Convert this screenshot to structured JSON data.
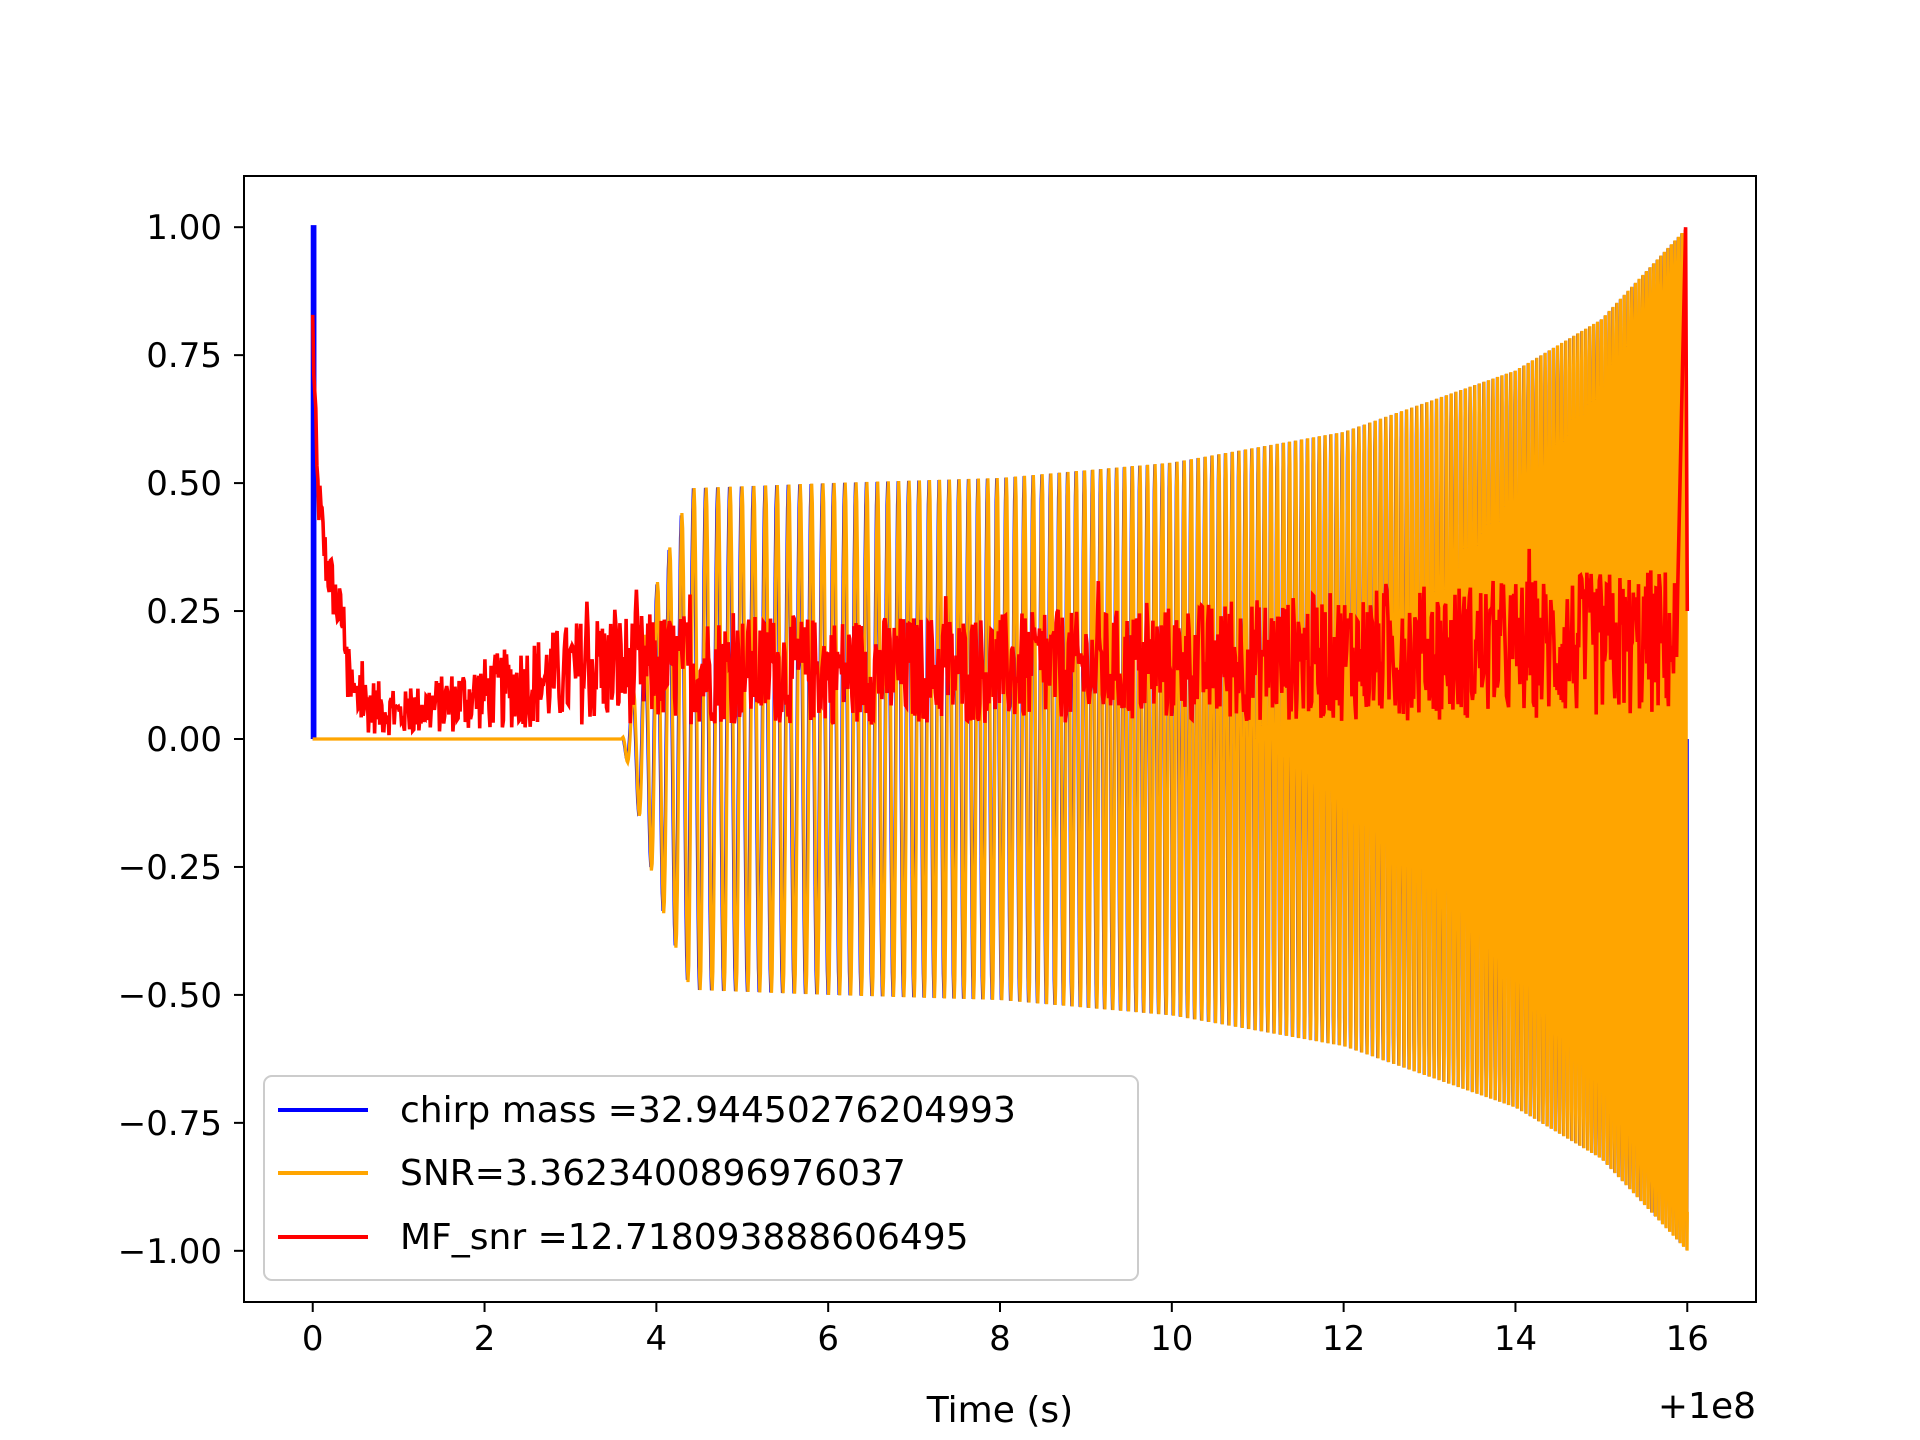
{
  "chart_data": {
    "type": "line",
    "title": "",
    "xlabel": "Time (s)",
    "ylabel": "",
    "x_offset_label": "+1e8",
    "xlim": [
      -0.8,
      16.8
    ],
    "ylim": [
      -1.1,
      1.1
    ],
    "x_ticks": [
      0,
      2,
      4,
      6,
      8,
      10,
      12,
      14,
      16
    ],
    "x_tick_labels": [
      "0",
      "2",
      "4",
      "6",
      "8",
      "10",
      "12",
      "14",
      "16"
    ],
    "y_ticks": [
      1.0,
      0.75,
      0.5,
      0.25,
      0.0,
      -0.25,
      -0.5,
      -0.75,
      -1.0
    ],
    "y_tick_labels": [
      "1.00",
      "0.75",
      "0.50",
      "0.25",
      "0.00",
      "−0.25",
      "−0.50",
      "−0.75",
      "−1.00"
    ],
    "grid": false,
    "legend_position": "lower-left",
    "series": [
      {
        "name": "chirp mass =32.94450276204993",
        "color": "#0000ff",
        "description_points": {
          "x": [
            0.0,
            0.0,
            0.0,
            3.6,
            4.0,
            4.4,
            6.0,
            8.0,
            10.0,
            12.0,
            14.0,
            15.0,
            16.0,
            16.0
          ],
          "envelope": [
            1.0,
            0.0,
            0.0,
            0.0,
            0.3,
            0.49,
            0.5,
            0.51,
            0.54,
            0.6,
            0.72,
            0.82,
            1.0,
            0.0
          ]
        }
      },
      {
        "name": "SNR=3.3623400896976037",
        "color": "#ffa500",
        "description_points": {
          "x": [
            0.0,
            3.6,
            4.0,
            4.4,
            6.0,
            8.0,
            10.0,
            12.0,
            14.0,
            15.0,
            16.0
          ],
          "envelope": [
            0.0,
            0.0,
            0.3,
            0.49,
            0.5,
            0.51,
            0.54,
            0.6,
            0.72,
            0.82,
            1.0
          ]
        }
      },
      {
        "name": "MF_snr =12.718093888606495",
        "color": "#ff0000",
        "description_points": {
          "x": [
            0.0,
            0.05,
            0.15,
            0.3,
            0.5,
            1.0,
            3.3,
            6.0,
            9.0,
            12.8,
            15.9,
            16.0
          ],
          "y": [
            0.81,
            0.5,
            0.35,
            0.25,
            0.15,
            0.1,
            0.26,
            0.25,
            0.26,
            0.31,
            0.35,
            1.0
          ]
        }
      }
    ]
  }
}
